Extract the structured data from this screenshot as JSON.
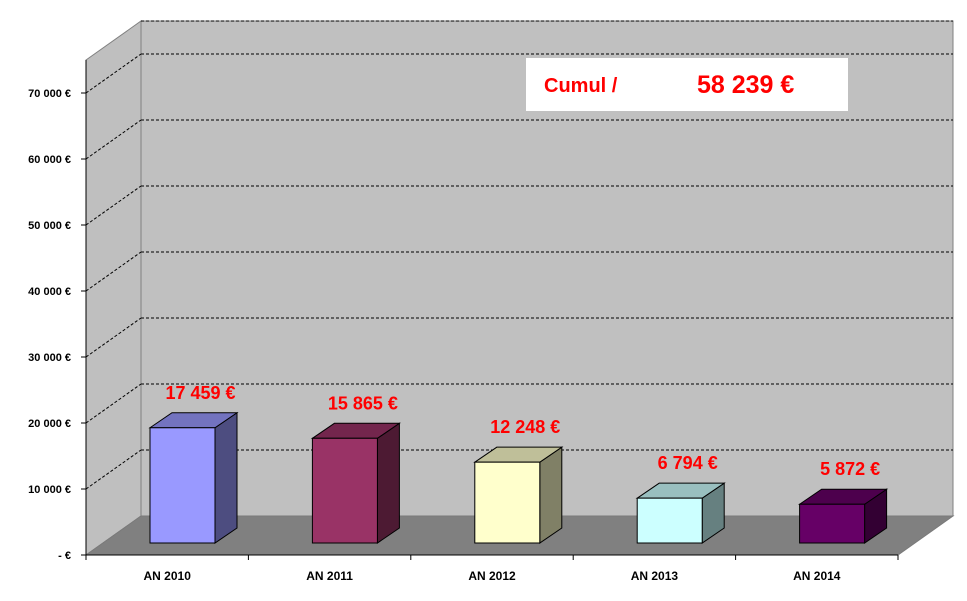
{
  "chart_data": {
    "type": "bar",
    "categories": [
      "AN 2010",
      "AN 2011",
      "AN 2012",
      "AN 2013",
      "AN 2014"
    ],
    "values": [
      17459,
      15865,
      12248,
      6794,
      5872
    ],
    "data_labels": [
      "17 459 €",
      "15 865 €",
      "12 248 €",
      "6 794 €",
      "5 872 €"
    ],
    "bar_colors": [
      "#9999ff",
      "#993366",
      "#ffffcc",
      "#ccffff",
      "#660066"
    ],
    "label_color": "#ff0000",
    "ylim": [
      0,
      75000
    ],
    "yticks": [
      0,
      10000,
      20000,
      30000,
      40000,
      50000,
      60000,
      70000
    ],
    "ytick_labels": [
      "-   €",
      "10 000 €",
      "20 000 €",
      "30 000 €",
      "40 000 €",
      "50 000 €",
      "60 000 €",
      "70 000 €"
    ],
    "grid": true,
    "style": "3d",
    "annotation": {
      "label": "Cumul /",
      "value": "58 239 €"
    }
  }
}
